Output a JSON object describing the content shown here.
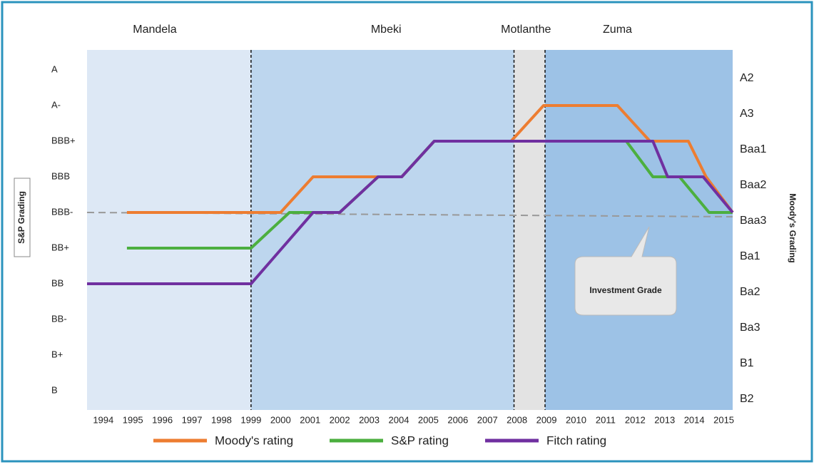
{
  "chart_data": {
    "type": "line",
    "xlim": [
      1993.45,
      2015.3
    ],
    "xticks": [
      1994,
      1995,
      1996,
      1997,
      1998,
      1999,
      2000,
      2001,
      2002,
      2003,
      2004,
      2005,
      2006,
      2007,
      2008,
      2009,
      2010,
      2011,
      2012,
      2013,
      2014,
      2015
    ],
    "ylim": [
      -0.54,
      9.56
    ],
    "yticks": [
      {
        "value": 0,
        "label": "B"
      },
      {
        "value": 1,
        "label": "B+"
      },
      {
        "value": 2,
        "label": "BB-"
      },
      {
        "value": 3,
        "label": "BB"
      },
      {
        "value": 4,
        "label": "BB+"
      },
      {
        "value": 5,
        "label": "BBB-"
      },
      {
        "value": 6,
        "label": "BBB"
      },
      {
        "value": 7,
        "label": "BBB+"
      },
      {
        "value": 8,
        "label": "A-"
      },
      {
        "value": 9,
        "label": "A"
      }
    ],
    "y2lim": [
      -0.54,
      9.56
    ],
    "y2ticks": [
      {
        "value": 0,
        "label": "B2"
      },
      {
        "value": 1,
        "label": "B1"
      },
      {
        "value": 2,
        "label": "Ba3"
      },
      {
        "value": 3,
        "label": "Ba2"
      },
      {
        "value": 4,
        "label": "Ba1"
      },
      {
        "value": 5,
        "label": "Baa3"
      },
      {
        "value": 6,
        "label": "Baa2"
      },
      {
        "value": 7,
        "label": "Baa1"
      },
      {
        "value": 8,
        "label": "A3"
      },
      {
        "value": 9,
        "label": "A2"
      }
    ],
    "ylabel": "S&P Grading",
    "y2label": "Moody's Grading",
    "periods": [
      {
        "name": "Mandela",
        "start": 1993.45,
        "end": 1999,
        "color": "#dde8f5"
      },
      {
        "name": "Mbeki",
        "start": 1999,
        "end": 2007.9,
        "color": "#bdd6ee"
      },
      {
        "name": "Motlanthe",
        "start": 2007.9,
        "end": 2008.95,
        "color": "#e3e3e3"
      },
      {
        "name": "Zuma",
        "start": 2008.95,
        "end": 2015.3,
        "color": "#9dc2e6"
      }
    ],
    "annotation": {
      "text": "Investment Grade",
      "value": 5
    },
    "series": [
      {
        "name": "Moody's rating",
        "color": "#ed7d31",
        "x": [
          1994.8,
          1999,
          2000,
          2001.1,
          2003.5,
          2004.1,
          2005.2,
          2007.8,
          2008.9,
          2011.4,
          2012.5,
          2013.8,
          2014.4,
          2015.3
        ],
        "values": [
          5,
          5,
          5,
          6,
          6,
          6,
          7,
          7,
          8,
          8,
          7,
          7,
          6,
          5
        ]
      },
      {
        "name": "S&P rating",
        "color": "#4caf3f",
        "x": [
          1994.8,
          1999,
          2000.3,
          2002,
          2003.3,
          2004.1,
          2005.2,
          2011.7,
          2012.6,
          2013.5,
          2014.5,
          2015.3
        ],
        "values": [
          4,
          4,
          5,
          5,
          6,
          6,
          7,
          7,
          6,
          6,
          5,
          5
        ]
      },
      {
        "name": "Fitch rating",
        "color": "#7030a0",
        "x": [
          1993.45,
          1999,
          2001.1,
          2002,
          2003.3,
          2004.1,
          2005.2,
          2011.7,
          2012.6,
          2013.1,
          2014.3,
          2015.3
        ],
        "values": [
          3,
          3,
          5,
          5,
          6,
          6,
          7,
          7,
          7,
          6,
          6,
          5
        ]
      }
    ]
  }
}
